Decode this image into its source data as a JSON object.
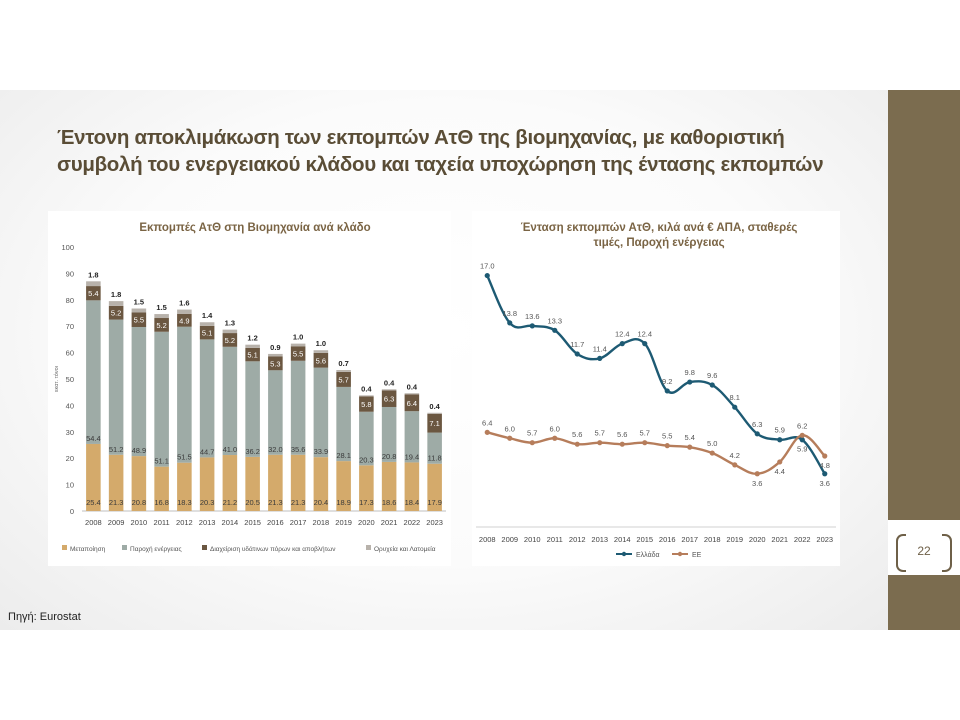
{
  "slide": {
    "title_line1": "Έντονη αποκλιμάκωση των εκπομπών ΑτΘ της βιομηχανίας, με καθοριστική",
    "title_line2": "συμβολή του ενεργειακού κλάδου και ταχεία υποχώρηση της έντασης εκπομπών",
    "source": "Πηγή: Eurostat",
    "page_number": "22"
  },
  "colors": {
    "sidebar": "#7b6c4f",
    "title": "#5a4d36",
    "manufacturing": "#d4aa6b",
    "energy": "#9eaba6",
    "water": "#6b5741",
    "mining": "#b8b2ab",
    "greece": "#1d5a73",
    "eu": "#b67d5b"
  },
  "chart_data": [
    {
      "type": "bar",
      "stacked": true,
      "title": "Εκπομπές ΑτΘ στη Βιομηχανία ανά κλάδο",
      "ylabel": "εκατ. τόνοι",
      "ylim": [
        0,
        100
      ],
      "yticks": [
        0,
        10,
        20,
        30,
        40,
        50,
        60,
        70,
        80,
        90,
        100
      ],
      "legend_position": "bottom",
      "categories": [
        "2008",
        "2009",
        "2010",
        "2011",
        "2012",
        "2013",
        "2014",
        "2015",
        "2016",
        "2017",
        "2018",
        "2019",
        "2020",
        "2021",
        "2022",
        "2023"
      ],
      "series": [
        {
          "name": "Μεταποίηση",
          "values": [
            25.4,
            21.3,
            20.8,
            16.8,
            18.3,
            20.3,
            21.2,
            20.5,
            21.3,
            21.3,
            20.4,
            18.9,
            17.3,
            18.6,
            18.4,
            17.9
          ]
        },
        {
          "name": "Παροχή ενέργειας",
          "values": [
            54.4,
            51.2,
            48.9,
            51.1,
            51.5,
            44.7,
            41.0,
            36.2,
            32.0,
            35.6,
            33.9,
            28.1,
            20.3,
            20.8,
            19.4,
            11.8
          ]
        },
        {
          "name": "Διαχείριση υδάτινων πόρων και αποβλήτων",
          "values": [
            5.4,
            5.2,
            5.5,
            5.2,
            4.9,
            5.1,
            5.2,
            5.1,
            5.3,
            5.5,
            5.6,
            5.7,
            5.8,
            6.3,
            6.4,
            7.1
          ]
        },
        {
          "name": "Ορυχεία και Λατομεία",
          "values": [
            1.8,
            1.8,
            1.5,
            1.5,
            1.6,
            1.4,
            1.3,
            1.2,
            0.9,
            1.0,
            1.0,
            0.7,
            0.4,
            0.4,
            0.4,
            0.4
          ]
        }
      ]
    },
    {
      "type": "line",
      "title_line1": "Ένταση εκπομπών ΑτΘ, κιλά ανά € ΑΠΑ, σταθερές",
      "title_line2": "τιμές, Παροχή ενέργειας",
      "ylim": [
        0,
        19
      ],
      "legend_position": "bottom",
      "categories": [
        "2008",
        "2009",
        "2010",
        "2011",
        "2012",
        "2013",
        "2014",
        "2015",
        "2016",
        "2017",
        "2018",
        "2019",
        "2020",
        "2021",
        "2022",
        "2023"
      ],
      "series": [
        {
          "name": "Ελλάδα",
          "values": [
            17.0,
            13.8,
            13.6,
            13.3,
            11.7,
            11.4,
            12.4,
            12.4,
            9.2,
            9.8,
            9.6,
            8.1,
            6.3,
            5.9,
            5.9,
            3.6
          ]
        },
        {
          "name": "ΕΕ",
          "values": [
            6.4,
            6.0,
            5.7,
            6.0,
            5.6,
            5.7,
            5.6,
            5.7,
            5.5,
            5.4,
            5.0,
            4.2,
            3.6,
            4.4,
            6.2,
            4.8
          ]
        }
      ]
    }
  ]
}
